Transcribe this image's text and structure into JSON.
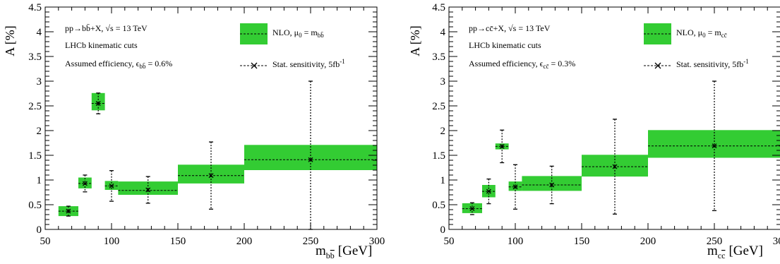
{
  "chart_data": [
    {
      "type": "bar",
      "panel": "left",
      "ylabel": "A [%]",
      "xlabel_main": "m",
      "xlabel_sub": "b",
      "xlabel_sub_bar": "b",
      "xlabel_unit": "[GeV]",
      "xlim": [
        50,
        300
      ],
      "ylim": [
        0,
        4.5
      ],
      "xticks": [
        50,
        100,
        150,
        200,
        250,
        300
      ],
      "xtick_labels": [
        "50",
        "100",
        "150",
        "200",
        "250",
        "300"
      ],
      "yticks": [
        0,
        0.5,
        1,
        1.5,
        2,
        2.5,
        3,
        3.5,
        4,
        4.5
      ],
      "ytick_labels": [
        "0",
        "0.5",
        "1",
        "1.5",
        "2",
        "2.5",
        "3",
        "3.5",
        "4",
        "4.5"
      ],
      "annotations": {
        "process": "pp→bb̄+X, √s = 13 TeV",
        "cuts": "LHCb kinematic cuts",
        "efficiency": "Assumed efficiency, ϵ",
        "efficiency_sub": "bb̄",
        "efficiency_value": " = 0.6%"
      },
      "legend": {
        "band_label": "NLO, μ",
        "band_label_sub": "0",
        "band_label_eq": " = m",
        "band_label_sub2": "bb̄",
        "points_label": "Stat. sensitivity, 5fb",
        "points_label_sup": "-1"
      },
      "bins": [
        {
          "x_low": 60,
          "x_high": 75,
          "central": 0.37,
          "low": 0.27,
          "high": 0.47
        },
        {
          "x_low": 75,
          "x_high": 85,
          "central": 0.93,
          "low": 0.83,
          "high": 1.05
        },
        {
          "x_low": 85,
          "x_high": 95,
          "central": 2.55,
          "low": 2.41,
          "high": 2.76
        },
        {
          "x_low": 95,
          "x_high": 105,
          "central": 0.88,
          "low": 0.8,
          "high": 0.98
        },
        {
          "x_low": 105,
          "x_high": 150,
          "central": 0.79,
          "low": 0.7,
          "high": 0.97
        },
        {
          "x_low": 150,
          "x_high": 200,
          "central": 1.09,
          "low": 0.93,
          "high": 1.31
        },
        {
          "x_low": 200,
          "x_high": 300,
          "central": 1.41,
          "low": 1.2,
          "high": 1.71
        }
      ],
      "points": [
        {
          "x": 67.5,
          "y": 0.37,
          "err": 0.1,
          "xerr": 7.5
        },
        {
          "x": 80,
          "y": 0.93,
          "err": 0.17,
          "xerr": 5
        },
        {
          "x": 90,
          "y": 2.55,
          "err": 0.21,
          "xerr": 5
        },
        {
          "x": 100,
          "y": 0.88,
          "err": 0.31,
          "xerr": 5
        },
        {
          "x": 127.5,
          "y": 0.8,
          "err": 0.27,
          "xerr": 22.5
        },
        {
          "x": 175,
          "y": 1.09,
          "err": 0.68,
          "xerr": 25
        },
        {
          "x": 250,
          "y": 1.41,
          "err": 1.59,
          "xerr": 50
        }
      ]
    },
    {
      "type": "bar",
      "panel": "right",
      "ylabel": "A [%]",
      "xlabel_main": "m",
      "xlabel_sub": "c",
      "xlabel_sub_bar": "c",
      "xlabel_unit": "[GeV]",
      "xlim": [
        50,
        300
      ],
      "ylim": [
        0,
        4.5
      ],
      "xticks": [
        50,
        100,
        150,
        200,
        250,
        300
      ],
      "xtick_labels": [
        "50",
        "100",
        "150",
        "200",
        "250",
        "300"
      ],
      "yticks": [
        0,
        0.5,
        1,
        1.5,
        2,
        2.5,
        3,
        3.5,
        4,
        4.5
      ],
      "ytick_labels": [
        "0",
        "0.5",
        "1",
        "1.5",
        "2",
        "2.5",
        "3",
        "3.5",
        "4",
        "4.5"
      ],
      "annotations": {
        "process": "pp→cc̄+X, √s = 13 TeV",
        "cuts": "LHCb kinematic cuts",
        "efficiency": "Assumed efficiency, ϵ",
        "efficiency_sub": "cc̄",
        "efficiency_value": " = 0.3%"
      },
      "legend": {
        "band_label": "NLO, μ",
        "band_label_sub": "0",
        "band_label_eq": " = m",
        "band_label_sub2": "cc̄",
        "points_label": "Stat. sensitivity, 5fb",
        "points_label_sup": "-1"
      },
      "bins": [
        {
          "x_low": 60,
          "x_high": 75,
          "central": 0.42,
          "low": 0.33,
          "high": 0.53
        },
        {
          "x_low": 75,
          "x_high": 85,
          "central": 0.77,
          "low": 0.65,
          "high": 0.9
        },
        {
          "x_low": 85,
          "x_high": 95,
          "central": 1.68,
          "low": 1.62,
          "high": 1.74
        },
        {
          "x_low": 95,
          "x_high": 105,
          "central": 0.86,
          "low": 0.78,
          "high": 0.97
        },
        {
          "x_low": 105,
          "x_high": 150,
          "central": 0.9,
          "low": 0.78,
          "high": 1.08
        },
        {
          "x_low": 150,
          "x_high": 200,
          "central": 1.27,
          "low": 1.07,
          "high": 1.51
        },
        {
          "x_low": 200,
          "x_high": 300,
          "central": 1.69,
          "low": 1.45,
          "high": 2.01
        }
      ],
      "points": [
        {
          "x": 67.5,
          "y": 0.42,
          "err": 0.12,
          "xerr": 7.5
        },
        {
          "x": 80,
          "y": 0.77,
          "err": 0.25,
          "xerr": 5
        },
        {
          "x": 90,
          "y": 1.68,
          "err": 0.33,
          "xerr": 5
        },
        {
          "x": 100,
          "y": 0.86,
          "err": 0.45,
          "xerr": 5
        },
        {
          "x": 127.5,
          "y": 0.9,
          "err": 0.38,
          "xerr": 22.5
        },
        {
          "x": 175,
          "y": 1.27,
          "err": 0.96,
          "xerr": 25
        },
        {
          "x": 250,
          "y": 1.69,
          "err": 1.31,
          "xerr": 50
        }
      ]
    }
  ]
}
